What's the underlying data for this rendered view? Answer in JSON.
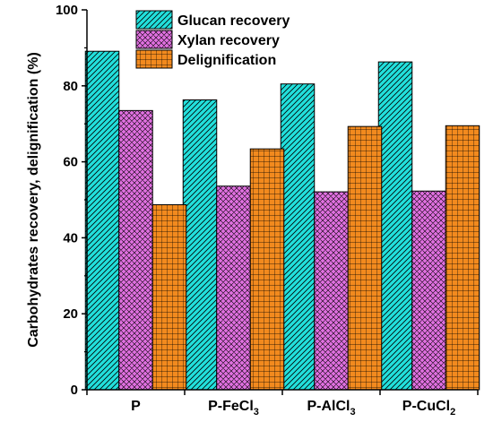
{
  "chart_data": {
    "type": "bar",
    "title": "",
    "xlabel": "",
    "ylabel": "Carbohydrates recovery, delignification (%)",
    "ylim": [
      0,
      100
    ],
    "yticks": [
      0,
      20,
      40,
      60,
      80,
      100
    ],
    "grid": false,
    "legend_position": "top-left",
    "categories": [
      {
        "base": "P",
        "sub": ""
      },
      {
        "base": "P-FeCl",
        "sub": "3"
      },
      {
        "base": "P-AlCl",
        "sub": "3"
      },
      {
        "base": "P-CuCl",
        "sub": "2"
      }
    ],
    "series": [
      {
        "name": "Glucan recovery",
        "color": "#22e0dc",
        "pattern": "diagonal-hatch",
        "values": [
          89.1,
          76.3,
          80.5,
          86.3
        ]
      },
      {
        "name": "Xylan recovery",
        "color": "#e070e0",
        "pattern": "cross-hatch",
        "values": [
          73.5,
          53.6,
          52.1,
          52.3
        ]
      },
      {
        "name": "Delignification",
        "color": "#f28a1e",
        "pattern": "grid",
        "values": [
          48.7,
          63.4,
          69.3,
          69.5
        ]
      }
    ]
  }
}
